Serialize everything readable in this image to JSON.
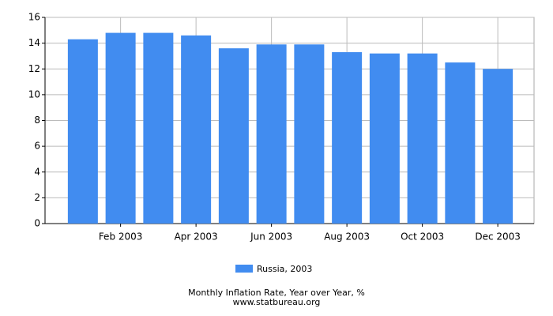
{
  "chart_data": {
    "type": "bar",
    "categories": [
      null,
      "Feb 2003",
      null,
      "Apr 2003",
      null,
      "Jun 2003",
      null,
      "Aug 2003",
      null,
      "Oct 2003",
      null,
      "Dec 2003"
    ],
    "series": [
      {
        "name": "Russia, 2003",
        "color": "#418cf0",
        "values": [
          14.3,
          14.8,
          14.8,
          14.6,
          13.6,
          13.9,
          13.9,
          13.3,
          13.2,
          13.2,
          12.5,
          12.0
        ]
      }
    ],
    "ylim": [
      0,
      16
    ],
    "yticks": [
      0,
      2,
      4,
      6,
      8,
      10,
      12,
      14,
      16
    ],
    "grid": true,
    "caption": "Monthly Inflation Rate, Year over Year, %",
    "source": "www.statbureau.org"
  }
}
